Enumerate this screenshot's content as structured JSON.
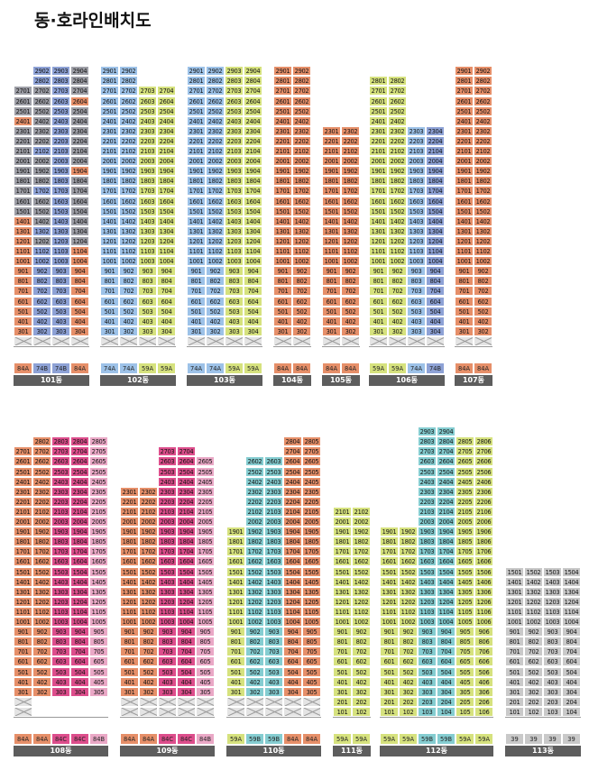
{
  "title": "동·호라인배치도",
  "colors": {
    "A": "#9e9fa7",
    "B": "#9dc2e8",
    "C": "#8ea2d6",
    "D": "#d6e27e",
    "E": "#e68f69",
    "F": "#f3a58a",
    "G": "#dd4e8c",
    "H": "#85cdd1",
    "I": "#c2a6d4",
    "J": "#c9c9c9",
    "K": "#eaa8c6",
    "Z": "#f3a58a"
  },
  "buildings": [
    {
      "name": "101동",
      "lines": [
        "01",
        "02",
        "03",
        "04"
      ],
      "top": 27,
      "bottom": 3,
      "pilotis": [
        2
      ],
      "types": [
        [
          "84A",
          "E"
        ],
        [
          "74B",
          "C"
        ],
        [
          "74B",
          "C"
        ],
        [
          "84A",
          "E"
        ]
      ],
      "cols": [
        {
          "top": 27,
          "bottom": 3,
          "pilotis": [
            2
          ],
          "seg": [
            [
              27,
              27,
              "A"
            ],
            [
              24,
              24,
              "E"
            ],
            [
              23,
              15,
              "A"
            ],
            [
              14,
              12,
              "E"
            ],
            [
              11,
              3,
              "E"
            ]
          ]
        },
        {
          "top": 29,
          "bottom": 3,
          "pilotis": [
            2
          ],
          "seg": [
            [
              29,
              28,
              "C"
            ],
            [
              27,
              22,
              "A"
            ],
            [
              21,
              21,
              "C"
            ],
            [
              20,
              18,
              "A"
            ],
            [
              17,
              17,
              "C"
            ],
            [
              16,
              14,
              "A"
            ],
            [
              13,
              13,
              "C"
            ],
            [
              12,
              12,
              "A"
            ],
            [
              11,
              9,
              "C"
            ],
            [
              8,
              3,
              "C"
            ]
          ]
        },
        {
          "top": 29,
          "bottom": 3,
          "pilotis": [
            2
          ],
          "seg": [
            [
              29,
              21,
              "C"
            ],
            [
              20,
              3,
              "C"
            ]
          ]
        },
        {
          "top": 29,
          "bottom": 3,
          "pilotis": [
            2
          ],
          "seg": [
            [
              29,
              27,
              "A"
            ],
            [
              26,
              26,
              "E"
            ],
            [
              25,
              20,
              "A"
            ],
            [
              19,
              19,
              "E"
            ],
            [
              18,
              12,
              "A"
            ],
            [
              11,
              9,
              "E"
            ],
            [
              8,
              3,
              "E"
            ]
          ]
        }
      ]
    },
    {
      "name": "102동",
      "lines": [
        "01",
        "02",
        "03",
        "04"
      ],
      "types": [
        [
          "74A",
          "B"
        ],
        [
          "74A",
          "B"
        ],
        [
          "59A",
          "D"
        ],
        [
          "59A",
          "D"
        ]
      ],
      "cols": [
        {
          "top": 29,
          "bottom": 3,
          "pilotis": [
            2
          ],
          "seg": [
            [
              29,
              3,
              "B"
            ]
          ]
        },
        {
          "top": 29,
          "bottom": 3,
          "pilotis": [
            2
          ],
          "seg": [
            [
              29,
              3,
              "B"
            ]
          ]
        },
        {
          "top": 27,
          "bottom": 3,
          "pilotis": [
            2
          ],
          "seg": [
            [
              27,
              3,
              "D"
            ]
          ]
        },
        {
          "top": 27,
          "bottom": 3,
          "pilotis": [
            2
          ],
          "seg": [
            [
              27,
              3,
              "D"
            ]
          ]
        }
      ]
    },
    {
      "name": "103동",
      "lines": [
        "01",
        "02",
        "03",
        "04"
      ],
      "types": [
        [
          "74A",
          "B"
        ],
        [
          "74A",
          "B"
        ],
        [
          "59A",
          "D"
        ],
        [
          "59A",
          "D"
        ]
      ],
      "cols": [
        {
          "top": 29,
          "bottom": 3,
          "pilotis": [
            2
          ],
          "seg": [
            [
              29,
              3,
              "B"
            ]
          ]
        },
        {
          "top": 29,
          "bottom": 3,
          "pilotis": [
            2
          ],
          "seg": [
            [
              29,
              3,
              "B"
            ]
          ]
        },
        {
          "top": 29,
          "bottom": 3,
          "pilotis": [
            2
          ],
          "seg": [
            [
              29,
              3,
              "D"
            ]
          ]
        },
        {
          "top": 29,
          "bottom": 3,
          "pilotis": [
            2
          ],
          "seg": [
            [
              29,
              3,
              "D"
            ]
          ]
        }
      ]
    },
    {
      "name": "104동",
      "lines": [
        "01",
        "02"
      ],
      "types": [
        [
          "84A",
          "E"
        ],
        [
          "84A",
          "E"
        ]
      ],
      "cols": [
        {
          "top": 29,
          "bottom": 3,
          "pilotis": [
            2
          ],
          "seg": [
            [
              29,
              3,
              "E"
            ]
          ]
        },
        {
          "top": 29,
          "bottom": 3,
          "pilotis": [
            2
          ],
          "seg": [
            [
              29,
              3,
              "E"
            ]
          ]
        }
      ]
    },
    {
      "name": "105동",
      "lines": [
        "01",
        "02"
      ],
      "types": [
        [
          "84A",
          "E"
        ],
        [
          "84A",
          "E"
        ]
      ],
      "cols": [
        {
          "top": 23,
          "bottom": 3,
          "pilotis": [
            2
          ],
          "seg": [
            [
              23,
              3,
              "E"
            ]
          ]
        },
        {
          "top": 23,
          "bottom": 3,
          "pilotis": [
            2
          ],
          "seg": [
            [
              23,
              3,
              "E"
            ]
          ]
        }
      ]
    },
    {
      "name": "106동",
      "lines": [
        "01",
        "02",
        "03",
        "04"
      ],
      "types": [
        [
          "59A",
          "D"
        ],
        [
          "59A",
          "D"
        ],
        [
          "74A",
          "B"
        ],
        [
          "74B",
          "C"
        ]
      ],
      "cols": [
        {
          "top": 28,
          "bottom": 3,
          "pilotis": [
            2
          ],
          "seg": [
            [
              28,
              3,
              "D"
            ]
          ]
        },
        {
          "top": 28,
          "bottom": 3,
          "pilotis": [
            2
          ],
          "seg": [
            [
              28,
              3,
              "D"
            ]
          ]
        },
        {
          "top": 23,
          "bottom": 3,
          "pilotis": [
            2
          ],
          "seg": [
            [
              23,
              3,
              "B"
            ]
          ]
        },
        {
          "top": 23,
          "bottom": 3,
          "pilotis": [
            2
          ],
          "seg": [
            [
              23,
              3,
              "C"
            ]
          ]
        }
      ]
    },
    {
      "name": "107동",
      "lines": [
        "01",
        "02"
      ],
      "types": [
        [
          "84A",
          "E"
        ],
        [
          "84A",
          "E"
        ]
      ],
      "cols": [
        {
          "top": 29,
          "bottom": 3,
          "pilotis": [
            2
          ],
          "seg": [
            [
              29,
              3,
              "E"
            ]
          ]
        },
        {
          "top": 29,
          "bottom": 3,
          "pilotis": [
            2
          ],
          "seg": [
            [
              29,
              3,
              "E"
            ]
          ]
        }
      ]
    },
    {
      "name": "108동",
      "lines": [
        "01",
        "02",
        "03",
        "04",
        "05"
      ],
      "types": [
        [
          "84A",
          "E"
        ],
        [
          "84A",
          "E"
        ],
        [
          "84C",
          "G"
        ],
        [
          "84C",
          "G"
        ],
        [
          "84B",
          "K"
        ]
      ],
      "cols": [
        {
          "top": 27,
          "bottom": 3,
          "pilotis": [
            2,
            1
          ],
          "seg": [
            [
              27,
              3,
              "E"
            ]
          ]
        },
        {
          "top": 28,
          "bottom": 3,
          "pilotis": [],
          "seg": [
            [
              28,
              3,
              "E"
            ]
          ]
        },
        {
          "top": 28,
          "bottom": 3,
          "pilotis": [],
          "seg": [
            [
              28,
              3,
              "G"
            ]
          ]
        },
        {
          "top": 28,
          "bottom": 3,
          "pilotis": [],
          "seg": [
            [
              28,
              3,
              "G"
            ]
          ]
        },
        {
          "top": 28,
          "bottom": 3,
          "pilotis": [],
          "seg": [
            [
              28,
              3,
              "K"
            ]
          ]
        }
      ]
    },
    {
      "name": "109동",
      "lines": [
        "01",
        "02",
        "03",
        "04",
        "05"
      ],
      "types": [
        [
          "84A",
          "E"
        ],
        [
          "84A",
          "E"
        ],
        [
          "84C",
          "G"
        ],
        [
          "84C",
          "G"
        ],
        [
          "84B",
          "K"
        ]
      ],
      "cols": [
        {
          "top": 23,
          "bottom": 3,
          "pilotis": [
            2,
            1
          ],
          "seg": [
            [
              23,
              3,
              "E"
            ]
          ]
        },
        {
          "top": 23,
          "bottom": 3,
          "pilotis": [
            2,
            1
          ],
          "seg": [
            [
              23,
              3,
              "E"
            ]
          ]
        },
        {
          "top": 27,
          "bottom": 3,
          "pilotis": [
            2,
            1
          ],
          "seg": [
            [
              27,
              3,
              "G"
            ]
          ]
        },
        {
          "top": 27,
          "bottom": 3,
          "pilotis": [
            2,
            1
          ],
          "seg": [
            [
              27,
              3,
              "G"
            ]
          ]
        },
        {
          "top": 26,
          "bottom": 3,
          "pilotis": [
            2,
            1
          ],
          "seg": [
            [
              26,
              3,
              "K"
            ]
          ]
        }
      ]
    },
    {
      "name": "110동",
      "lines": [
        "01",
        "02",
        "03",
        "04",
        "05"
      ],
      "types": [
        [
          "59A",
          "D"
        ],
        [
          "59B",
          "H"
        ],
        [
          "59B",
          "H"
        ],
        [
          "84A",
          "E"
        ],
        [
          "84A",
          "E"
        ]
      ],
      "cols": [
        {
          "top": 19,
          "bottom": 3,
          "pilotis": [
            2,
            1
          ],
          "seg": [
            [
              19,
              3,
              "D"
            ]
          ]
        },
        {
          "top": 26,
          "bottom": 3,
          "pilotis": [
            2,
            1
          ],
          "seg": [
            [
              26,
              3,
              "H"
            ]
          ]
        },
        {
          "top": 26,
          "bottom": 3,
          "pilotis": [
            2,
            1
          ],
          "seg": [
            [
              26,
              3,
              "H"
            ]
          ]
        },
        {
          "top": 28,
          "bottom": 3,
          "pilotis": [
            2,
            1
          ],
          "seg": [
            [
              28,
              3,
              "E"
            ]
          ]
        },
        {
          "top": 28,
          "bottom": 3,
          "pilotis": [
            2,
            1
          ],
          "seg": [
            [
              28,
              3,
              "E"
            ]
          ]
        }
      ]
    },
    {
      "name": "111동",
      "lines": [
        "01",
        "02"
      ],
      "types": [
        [
          "59A",
          "D"
        ],
        [
          "59A",
          "D"
        ]
      ],
      "cols": [
        {
          "top": 21,
          "bottom": 1,
          "pilotis": [],
          "seg": [
            [
              21,
              1,
              "D"
            ]
          ]
        },
        {
          "top": 21,
          "bottom": 1,
          "pilotis": [],
          "seg": [
            [
              21,
              1,
              "D"
            ]
          ]
        }
      ]
    },
    {
      "name": "112동",
      "lines": [
        "01",
        "02",
        "03",
        "04",
        "05",
        "06"
      ],
      "types": [
        [
          "59A",
          "D"
        ],
        [
          "59A",
          "D"
        ],
        [
          "59B",
          "H"
        ],
        [
          "59B",
          "H"
        ],
        [
          "59A",
          "D"
        ],
        [
          "59A",
          "D"
        ]
      ],
      "cols": [
        {
          "top": 19,
          "bottom": 1,
          "pilotis": [],
          "seg": [
            [
              19,
              1,
              "D"
            ]
          ]
        },
        {
          "top": 19,
          "bottom": 1,
          "pilotis": [],
          "seg": [
            [
              19,
              1,
              "D"
            ]
          ]
        },
        {
          "top": 29,
          "bottom": 1,
          "pilotis": [],
          "seg": [
            [
              29,
              1,
              "H"
            ]
          ]
        },
        {
          "top": 29,
          "bottom": 1,
          "pilotis": [],
          "seg": [
            [
              29,
              1,
              "H"
            ]
          ]
        },
        {
          "top": 28,
          "bottom": 1,
          "pilotis": [],
          "seg": [
            [
              28,
              1,
              "D"
            ]
          ]
        },
        {
          "top": 28,
          "bottom": 1,
          "pilotis": [],
          "seg": [
            [
              28,
              1,
              "D"
            ]
          ]
        }
      ]
    },
    {
      "name": "113동",
      "lines": [
        "01",
        "02",
        "03",
        "04"
      ],
      "types": [
        [
          "39",
          "J"
        ],
        [
          "39",
          "J"
        ],
        [
          "39",
          "J"
        ],
        [
          "39",
          "J"
        ]
      ],
      "cols": [
        {
          "top": 15,
          "bottom": 1,
          "pilotis": [],
          "seg": [
            [
              15,
              1,
              "J"
            ]
          ]
        },
        {
          "top": 15,
          "bottom": 1,
          "pilotis": [],
          "seg": [
            [
              15,
              1,
              "J"
            ]
          ]
        },
        {
          "top": 15,
          "bottom": 1,
          "pilotis": [],
          "seg": [
            [
              15,
              1,
              "J"
            ]
          ]
        },
        {
          "top": 15,
          "bottom": 1,
          "pilotis": [],
          "seg": [
            [
              15,
              1,
              "J"
            ]
          ]
        }
      ]
    }
  ]
}
